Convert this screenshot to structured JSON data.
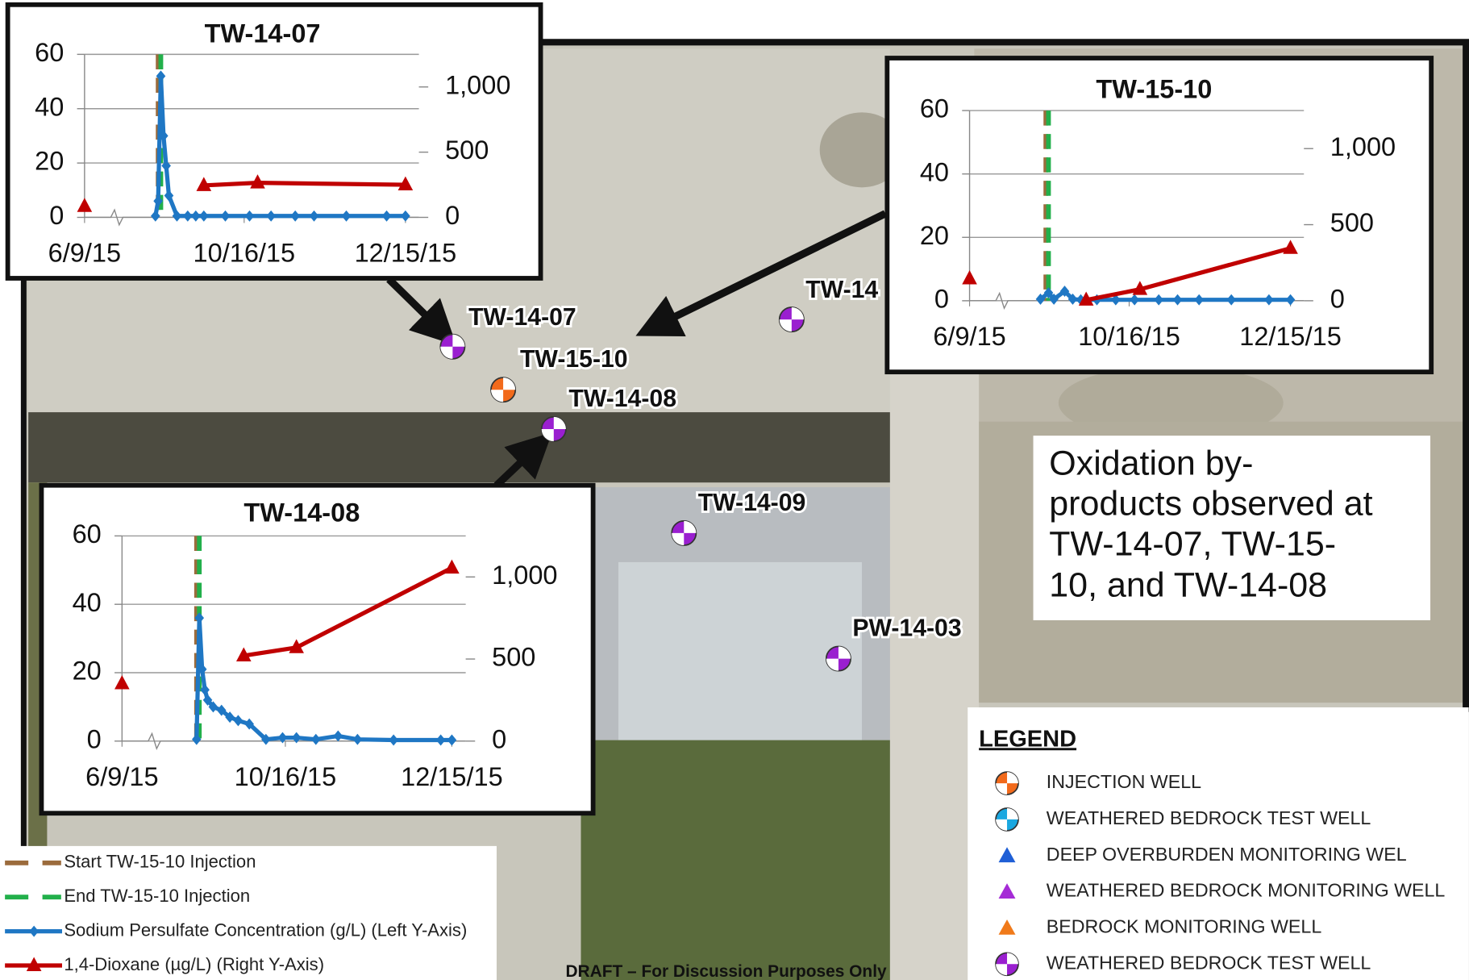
{
  "chart_data": [
    {
      "type": "line",
      "title": "TW-14-07",
      "xticks": [
        "6/9/15",
        "10/16/15",
        "12/15/15"
      ],
      "xlim": [
        "9/3/15",
        "12/20/15"
      ],
      "x_break": true,
      "ylim": [
        0,
        60
      ],
      "yticks": [
        0,
        20,
        40,
        60
      ],
      "y2lim": [
        0,
        1250
      ],
      "y2ticks": [
        0,
        500,
        {
          "value": 1000,
          "label": "1,000"
        }
      ],
      "grid": true,
      "series": [
        {
          "name": "Start TW-15-10 Injection",
          "color": "#9b6b3c",
          "style": "dashed",
          "x": [
            "9/14/15"
          ]
        },
        {
          "name": "End TW-15-10 Injection",
          "color": "#22b04b",
          "style": "dashed",
          "x": [
            "9/15/15"
          ]
        },
        {
          "name": "Sodium Persulfate Concentration (g/L) (Left Y-Axis)",
          "color": "#1f77c4",
          "marker": "diamond",
          "x": [
            "9/13/15",
            "9/14/15",
            "9/15/15",
            "9/16/15",
            "9/17/15",
            "9/18/15",
            "9/21/15",
            "9/25/15",
            "9/28/15",
            "10/1/15",
            "10/9/15",
            "10/18/15",
            "10/26/15",
            "11/4/15",
            "11/11/15",
            "11/23/15",
            "12/8/15",
            "12/15/15"
          ],
          "values": [
            0.5,
            6,
            52,
            30,
            19,
            8,
            0.5,
            0.5,
            0.5,
            0.5,
            0.5,
            0.5,
            0.5,
            0.5,
            0.5,
            0.5,
            0.5,
            0.5
          ]
        },
        {
          "name": "1,4-Dioxane (µg/L) (Right Y-Axis)",
          "color": "#c00000",
          "marker": "triangle",
          "axis": "y2",
          "x": [
            "6/9/15",
            "10/1/15",
            "10/21/15",
            "12/15/15"
          ],
          "values": [
            85,
            245,
            265,
            250
          ]
        }
      ]
    },
    {
      "type": "line",
      "title": "TW-15-10",
      "xticks": [
        "6/9/15",
        "10/16/15",
        "12/15/15"
      ],
      "xlim": [
        "9/3/15",
        "12/20/15"
      ],
      "x_break": true,
      "ylim": [
        0,
        60
      ],
      "yticks": [
        0,
        20,
        40,
        60
      ],
      "y2lim": [
        0,
        1250
      ],
      "y2ticks": [
        0,
        500,
        {
          "value": 1000,
          "label": "1,000"
        }
      ],
      "grid": true,
      "series": [
        {
          "color": "#9b6b3c",
          "style": "dashed",
          "x": [
            "9/15/15"
          ]
        },
        {
          "color": "#22b04b",
          "style": "dashed",
          "x": [
            "9/16/15"
          ]
        },
        {
          "color": "#1f77c4",
          "marker": "diamond",
          "x": [
            "9/13/15",
            "9/16/15",
            "9/18/15",
            "9/22/15",
            "9/25/15",
            "9/28/15",
            "10/4/15",
            "10/11/15",
            "10/18/15",
            "10/27/15",
            "11/3/15",
            "11/11/15",
            "11/23/15",
            "12/7/15",
            "12/15/15"
          ],
          "values": [
            0.5,
            2.5,
            0.5,
            3,
            0.5,
            0.3,
            0.3,
            0.3,
            0.3,
            0.3,
            0.3,
            0.3,
            0.3,
            0.3,
            0.3
          ]
        },
        {
          "color": "#c00000",
          "marker": "triangle",
          "axis": "y2",
          "x": [
            "6/9/15",
            "9/30/15",
            "10/20/15",
            "12/15/15"
          ],
          "values": [
            145,
            5,
            75,
            345
          ]
        }
      ]
    },
    {
      "type": "line",
      "title": "TW-14-08",
      "xticks": [
        "6/9/15",
        "10/16/15",
        "12/15/15"
      ],
      "xlim": [
        "9/3/15",
        "12/20/15"
      ],
      "x_break": true,
      "ylim": [
        0,
        60
      ],
      "yticks": [
        0,
        20,
        40,
        60
      ],
      "y2lim": [
        0,
        1250
      ],
      "y2ticks": [
        0,
        500,
        {
          "value": 1000,
          "label": "1,000"
        }
      ],
      "grid": true,
      "series": [
        {
          "color": "#9b6b3c",
          "style": "dashed",
          "x": [
            "9/14/15"
          ]
        },
        {
          "color": "#22b04b",
          "style": "dashed",
          "x": [
            "9/15/15"
          ]
        },
        {
          "color": "#1f77c4",
          "marker": "diamond",
          "x": [
            "9/14/15",
            "9/15/15",
            "9/16/15",
            "9/17/15",
            "9/18/15",
            "9/20/15",
            "9/23/15",
            "9/26/15",
            "9/29/15",
            "10/3/15",
            "10/9/15",
            "10/15/15",
            "10/20/15",
            "10/27/15",
            "11/4/15",
            "11/11/15",
            "11/24/15",
            "12/11/15",
            "12/15/15"
          ],
          "values": [
            0.5,
            36,
            21,
            15,
            12,
            10,
            9,
            7,
            6,
            5,
            0.5,
            1,
            1,
            0.5,
            1.5,
            0.5,
            0.3,
            0.3,
            0.3
          ]
        },
        {
          "color": "#c00000",
          "marker": "triangle",
          "axis": "y2",
          "x": [
            "6/9/15",
            "10/1/15",
            "10/20/15",
            "12/15/15"
          ],
          "values": [
            350,
            520,
            570,
            1055
          ]
        }
      ]
    }
  ],
  "map_labels": [
    {
      "label": "TW-14-07",
      "color": "#9a1fd0"
    },
    {
      "label": "TW-15-10",
      "color": "#f26a1b"
    },
    {
      "label": "TW-14-08",
      "color": "#9a1fd0"
    },
    {
      "label": "TW-14",
      "color": "#9a1fd0"
    },
    {
      "label": "TW-14-09",
      "color": "#9a1fd0"
    },
    {
      "label": "PW-14-03",
      "color": "#9a1fd0"
    }
  ],
  "note": [
    "Oxidation by-",
    "products observed at",
    "TW-14-07, TW-15-",
    "10, and TW-14-08"
  ],
  "legend": {
    "title": "LEGEND",
    "items": [
      {
        "label": "INJECTION WELL",
        "symbol": "quartered",
        "color": "#f26a1b"
      },
      {
        "label": "WEATHERED BEDROCK TEST WELL",
        "symbol": "quartered",
        "color": "#1aa7e0"
      },
      {
        "label": "DEEP OVERBURDEN MONITORING WEL",
        "symbol": "triangle",
        "color": "#1f5fd6"
      },
      {
        "label": "WEATHERED BEDROCK MONITORING WELL",
        "symbol": "triangle",
        "color": "#a52bd6"
      },
      {
        "label": "BEDROCK MONITORING WELL",
        "symbol": "triangle",
        "color": "#f07a1a"
      },
      {
        "label": "WEATHERED BEDROCK TEST WELL",
        "symbol": "quartered",
        "color": "#9a1fd0"
      }
    ]
  },
  "footer": "DRAFT – For Discussion Purposes Only"
}
